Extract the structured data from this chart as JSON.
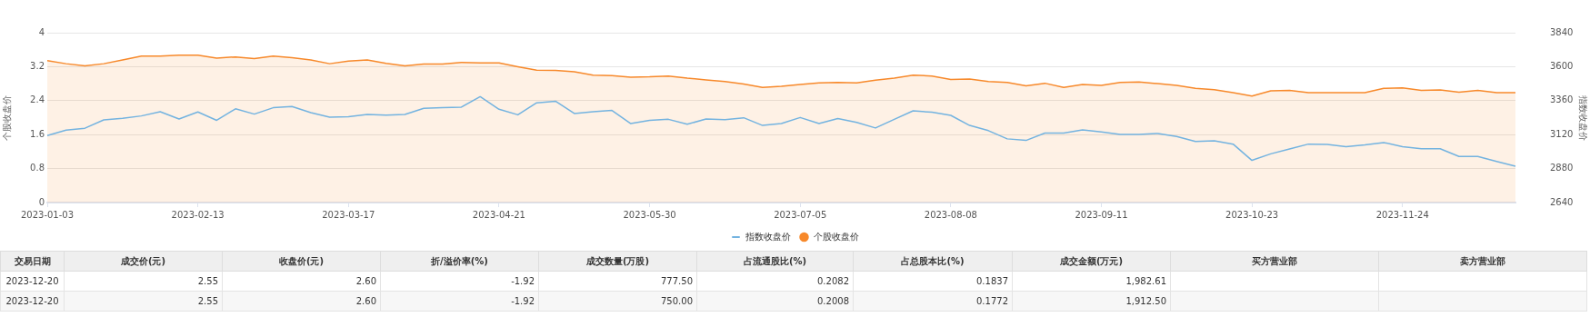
{
  "chart_data": [
    {
      "type": "line",
      "categories": [
        "2023-01-03",
        null,
        null,
        null,
        null,
        null,
        null,
        null,
        "2023-02-13",
        null,
        null,
        null,
        null,
        null,
        null,
        null,
        "2023-03-17",
        null,
        null,
        null,
        null,
        null,
        null,
        null,
        "2023-04-21",
        null,
        null,
        null,
        null,
        null,
        null,
        null,
        "2023-05-30",
        null,
        null,
        null,
        null,
        null,
        null,
        null,
        "2023-07-05",
        null,
        null,
        null,
        null,
        null,
        null,
        null,
        "2023-08-08",
        null,
        null,
        null,
        null,
        null,
        null,
        null,
        "2023-09-11",
        null,
        null,
        null,
        null,
        null,
        null,
        null,
        "2023-10-23",
        null,
        null,
        null,
        null,
        null,
        null,
        null,
        "2023-11-24",
        null,
        null,
        null,
        null,
        null,
        null
      ],
      "ylim": [
        0,
        4
      ],
      "yticks": [
        0,
        0.8,
        1.6,
        2.4,
        3.2,
        4
      ],
      "y2lim": [
        2640,
        3840
      ],
      "y2ticks": [
        2640,
        2880,
        3120,
        3360,
        3600,
        3840
      ],
      "ylabel": "个股收盘价",
      "y2label": "指数收盘价",
      "grid": "y",
      "legend": "bottom",
      "marker": "none",
      "series": [
        {
          "name": "指数收盘价",
          "type": "line",
          "axis": "y2",
          "color": "#73b3e0",
          "values": [
            3113,
            3152,
            3165,
            3224,
            3235,
            3252,
            3282,
            3230,
            3280,
            3221,
            3302,
            3265,
            3310,
            3319,
            3275,
            3243,
            3247,
            3262,
            3258,
            3263,
            3306,
            3310,
            3314,
            3388,
            3299,
            3260,
            3345,
            3356,
            3269,
            3282,
            3291,
            3198,
            3221,
            3228,
            3193,
            3230,
            3226,
            3239,
            3185,
            3198,
            3241,
            3198,
            3234,
            3206,
            3167,
            3228,
            3288,
            3278,
            3256,
            3185,
            3148,
            3090,
            3079,
            3131,
            3131,
            3154,
            3139,
            3122,
            3122,
            3128,
            3107,
            3072,
            3077,
            3053,
            2938,
            2984,
            3018,
            3053,
            3051,
            3035,
            3048,
            3064,
            3035,
            3020,
            3020,
            2966,
            2966,
            2930,
            2897
          ]
        },
        {
          "name": "个股收盘价",
          "type": "area",
          "color": "#f7892b",
          "values": [
            3.34,
            3.27,
            3.22,
            3.27,
            3.36,
            3.45,
            3.45,
            3.47,
            3.47,
            3.4,
            3.43,
            3.39,
            3.45,
            3.41,
            3.36,
            3.27,
            3.33,
            3.36,
            3.28,
            3.22,
            3.26,
            3.26,
            3.3,
            3.29,
            3.29,
            3.2,
            3.12,
            3.11,
            3.08,
            3.0,
            2.99,
            2.95,
            2.96,
            2.98,
            2.93,
            2.89,
            2.85,
            2.79,
            2.71,
            2.74,
            2.78,
            2.82,
            2.83,
            2.82,
            2.88,
            2.93,
            3.0,
            2.98,
            2.9,
            2.91,
            2.85,
            2.83,
            2.75,
            2.81,
            2.71,
            2.78,
            2.76,
            2.83,
            2.84,
            2.8,
            2.76,
            2.69,
            2.66,
            2.59,
            2.51,
            2.63,
            2.64,
            2.59,
            2.59,
            2.59,
            2.59,
            2.69,
            2.7,
            2.64,
            2.65,
            2.6,
            2.64,
            2.59,
            2.59
          ]
        }
      ]
    },
    {
      "type": "other",
      "categories": [
        "交易日期",
        "成交价(元)",
        "收盘价(元)",
        "折/溢价率(%)",
        "成交数量(万股)",
        "占流通股比(%)",
        "占总股本比(%)",
        "成交金额(万元)",
        "买方营业部",
        "卖方营业部"
      ],
      "cell_labels": [
        [
          "2023-12-20",
          "2.55",
          "2.60",
          "-1.92",
          "777.50",
          "0.2082",
          "0.1837",
          "1,982.61",
          null,
          null
        ],
        [
          "2023-12-20",
          "2.55",
          "2.60",
          "-1.92",
          "750.00",
          "0.2008",
          "0.1772",
          "1,912.50",
          null,
          null
        ]
      ]
    }
  ]
}
